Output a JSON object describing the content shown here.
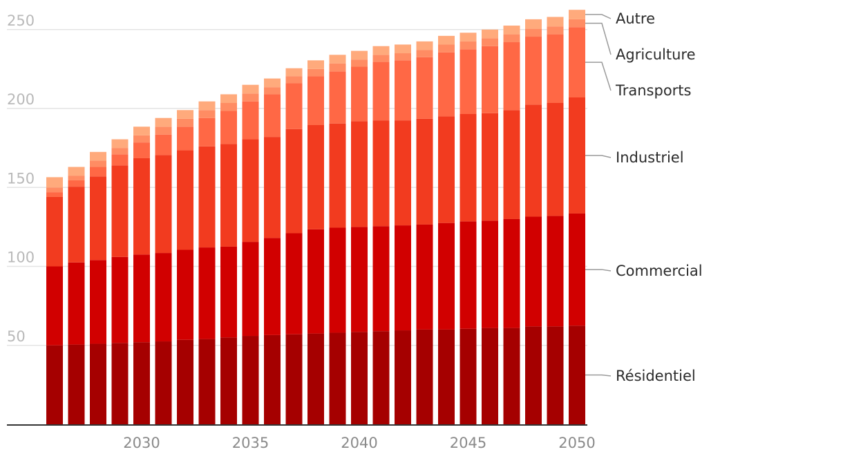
{
  "chart_data": {
    "type": "bar",
    "stacked": true,
    "title": "",
    "xlabel": "",
    "ylabel": "",
    "ylim": [
      0,
      260
    ],
    "yticks": [
      50,
      100,
      150,
      200,
      250
    ],
    "xtick_labels": [
      "2030",
      "2035",
      "2040",
      "2045",
      "2050"
    ],
    "grid": true,
    "legend_placement": "right, at end of stacks",
    "categories": [
      "2026",
      "2027",
      "2028",
      "2029",
      "2030",
      "2031",
      "2032",
      "2033",
      "2034",
      "2035",
      "2036",
      "2037",
      "2038",
      "2039",
      "2040",
      "2041",
      "2042",
      "2043",
      "2044",
      "2045",
      "2046",
      "2047",
      "2048",
      "2049",
      "2050"
    ],
    "series": [
      {
        "name": "Résidentiel",
        "color": "#a50000",
        "values": [
          50,
          50.5,
          51,
          51.5,
          52,
          52.5,
          53.5,
          54,
          55,
          56,
          56.5,
          57,
          57.5,
          58,
          58.5,
          59,
          59.5,
          60,
          60,
          60.5,
          61,
          61,
          62,
          62,
          62.5
        ]
      },
      {
        "name": "Commercial",
        "color": "#d10000",
        "values": [
          50,
          52,
          53,
          54.5,
          55.5,
          56,
          57,
          58,
          57.5,
          59.5,
          61.5,
          64,
          66,
          66.5,
          66.5,
          66.5,
          66.5,
          66.5,
          67.5,
          68,
          68,
          69,
          69.5,
          70,
          71
        ]
      },
      {
        "name": "Industriel",
        "color": "#f23b1f",
        "values": [
          44,
          48,
          53,
          58,
          61,
          62,
          63,
          64,
          65,
          65,
          64,
          66,
          66,
          66,
          67,
          67,
          66.5,
          67,
          67.5,
          68,
          68,
          69,
          71,
          71.5,
          73.5
        ]
      },
      {
        "name": "Transports",
        "color": "#ff6845",
        "values": [
          3,
          4,
          6,
          7,
          10,
          13,
          15,
          18,
          21,
          24,
          27,
          29,
          31,
          33,
          34.5,
          37,
          38,
          39,
          40.5,
          41,
          42.5,
          43,
          43,
          43.5,
          44.5
        ]
      },
      {
        "name": "Agriculture",
        "color": "#ff8c63",
        "values": [
          3,
          3,
          4,
          4,
          4.5,
          5,
          5,
          5,
          5,
          5,
          4.5,
          4.5,
          4.5,
          5,
          4.5,
          4.5,
          4.5,
          4.5,
          5,
          5,
          5,
          5,
          5,
          5,
          5
        ]
      },
      {
        "name": "Autre",
        "color": "#ffaa7c",
        "values": [
          6.5,
          5.5,
          5.5,
          5.5,
          5.5,
          5.5,
          5.5,
          5.5,
          5.5,
          5.5,
          5.5,
          5,
          5.5,
          5.5,
          5.5,
          5.5,
          5.5,
          5.5,
          5.5,
          5.5,
          5.5,
          5.5,
          6,
          6,
          6
        ]
      }
    ]
  }
}
